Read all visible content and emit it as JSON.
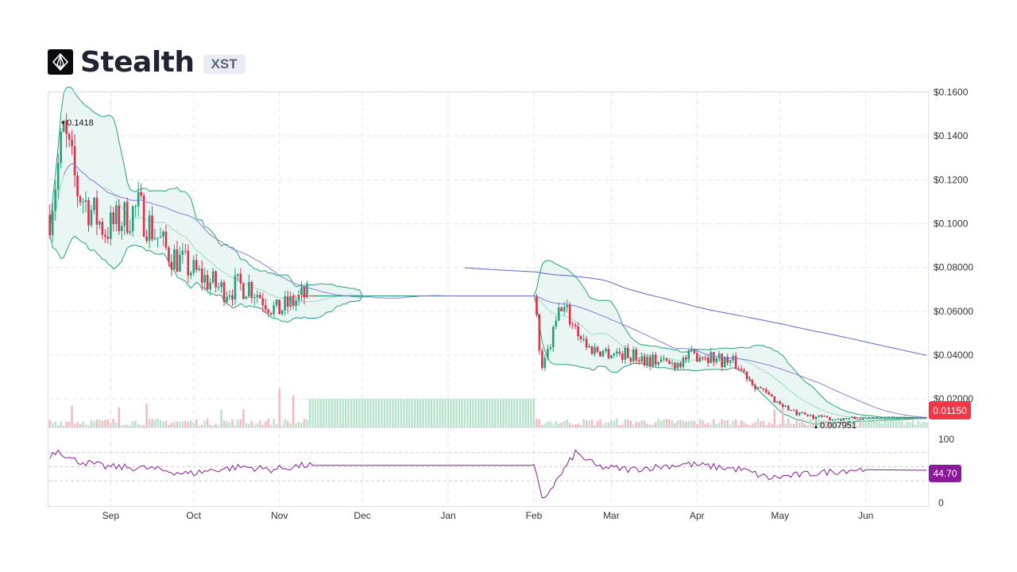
{
  "header": {
    "name": "Stealth",
    "ticker": "XST",
    "logo_icon": "stealth-logo-icon"
  },
  "colors": {
    "up": "#26a17b",
    "down": "#e0314b",
    "band_line": "#26a17b",
    "band_fill": "#e6f4f1",
    "ma_mid": "#8e7bd6",
    "ma_long": "#5a67c8",
    "rsi": "#8b1a99",
    "price_tag": "#f23645",
    "rsi_tag": "#8b1a99"
  },
  "chart_data": {
    "type": "candlestick",
    "price_axis": {
      "ylim": [
        0.007,
        0.16
      ],
      "ticks": [
        "$0.1600",
        "$0.1400",
        "$0.1200",
        "$0.1000",
        "$0.08000",
        "$0.06000",
        "$0.04000",
        "$0.02000"
      ],
      "tick_values": [
        0.16,
        0.14,
        0.12,
        0.1,
        0.08,
        0.06,
        0.04,
        0.02
      ]
    },
    "x_axis": {
      "labels": [
        "Sep",
        "Oct",
        "Nov",
        "Dec",
        "Jan",
        "Feb",
        "Mar",
        "Apr",
        "May",
        "Jun"
      ],
      "label_index": [
        22,
        52,
        83,
        113,
        144,
        175,
        203,
        234,
        264,
        295
      ]
    },
    "days": 318,
    "annotations": {
      "high": "0.1418",
      "high_index": 5,
      "low": "0.007951",
      "low_index": 277,
      "current_price": "0.01150"
    },
    "price_path": [
      [
        0,
        0.104
      ],
      [
        5,
        0.1418
      ],
      [
        10,
        0.115
      ],
      [
        20,
        0.097
      ],
      [
        32,
        0.107
      ],
      [
        42,
        0.088
      ],
      [
        52,
        0.078
      ],
      [
        62,
        0.07
      ],
      [
        72,
        0.072
      ],
      [
        82,
        0.06
      ],
      [
        92,
        0.067
      ],
      [
        175,
        0.067
      ],
      [
        178,
        0.032
      ],
      [
        185,
        0.063
      ],
      [
        195,
        0.043
      ],
      [
        210,
        0.04
      ],
      [
        225,
        0.036
      ],
      [
        235,
        0.041
      ],
      [
        248,
        0.036
      ],
      [
        258,
        0.023
      ],
      [
        270,
        0.013
      ],
      [
        282,
        0.011
      ],
      [
        292,
        0.011
      ],
      [
        318,
        0.0115
      ]
    ],
    "flat_ranges": [
      [
        94,
        175
      ],
      [
        295,
        318
      ]
    ],
    "rsi": {
      "ylim": [
        0,
        100
      ],
      "ticks": [
        "100",
        "0"
      ],
      "tick_values": [
        100,
        0
      ],
      "current": "44.70",
      "path": [
        [
          0,
          66
        ],
        [
          3,
          74
        ],
        [
          8,
          60
        ],
        [
          20,
          50
        ],
        [
          35,
          48
        ],
        [
          50,
          40
        ],
        [
          60,
          46
        ],
        [
          70,
          50
        ],
        [
          80,
          46
        ],
        [
          92,
          52
        ],
        [
          175,
          52
        ],
        [
          178,
          2
        ],
        [
          185,
          40
        ],
        [
          190,
          70
        ],
        [
          198,
          50
        ],
        [
          210,
          46
        ],
        [
          230,
          54
        ],
        [
          250,
          46
        ],
        [
          260,
          34
        ],
        [
          275,
          40
        ],
        [
          290,
          46
        ],
        [
          318,
          45
        ]
      ]
    },
    "volume": {
      "spikes": [
        [
          8,
          0.55
        ],
        [
          25,
          0.5
        ],
        [
          35,
          0.6
        ],
        [
          62,
          0.45
        ],
        [
          70,
          0.45
        ],
        [
          83,
          0.98
        ],
        [
          88,
          0.8
        ],
        [
          262,
          0.45
        ],
        [
          265,
          0.5
        ]
      ],
      "flat_range": [
        94,
        175
      ],
      "flat_level": 0.72
    }
  }
}
